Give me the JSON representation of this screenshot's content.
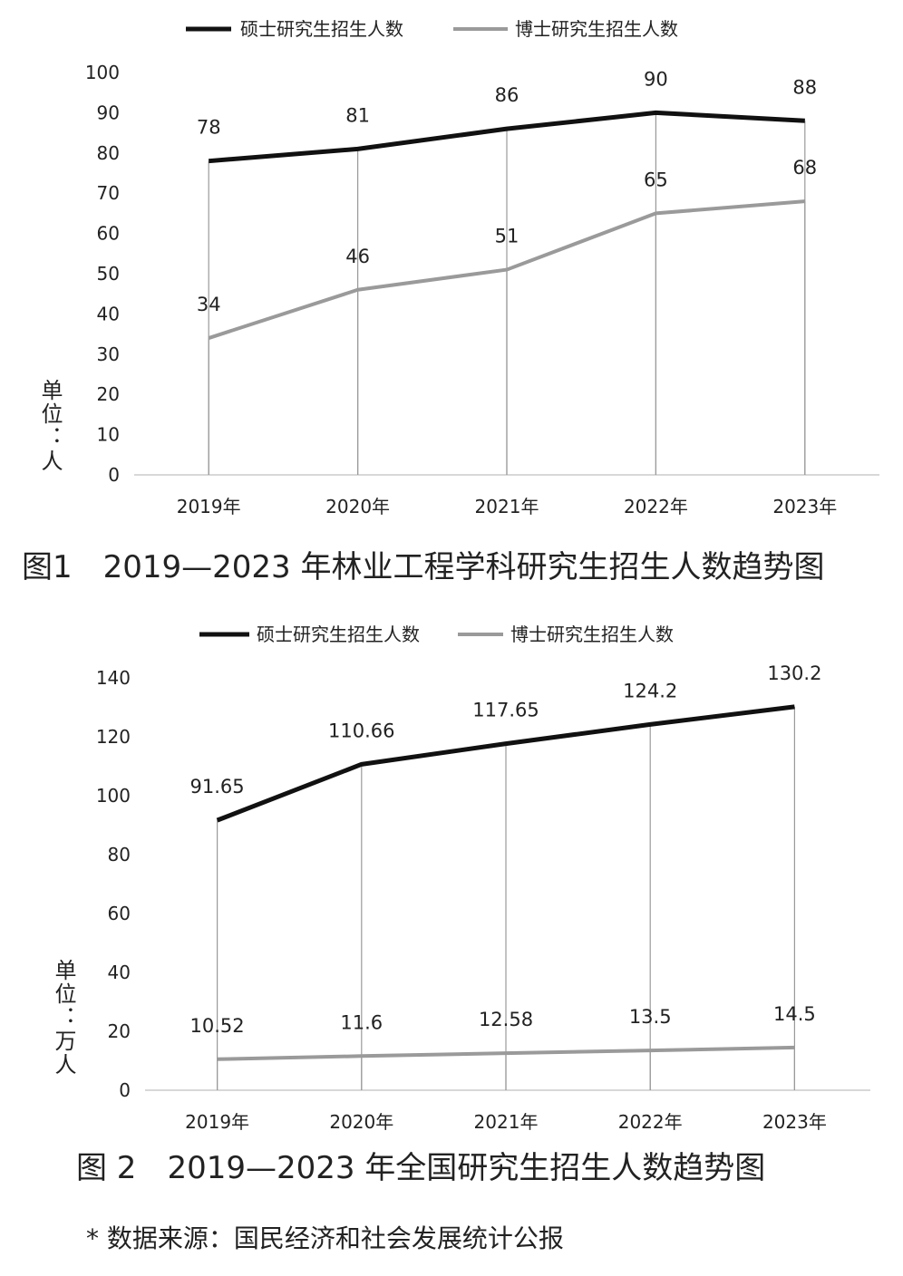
{
  "chart_data": [
    {
      "type": "line",
      "title": "图1　2019—2023 年林业工程学科研究生招生人数趋势图",
      "y_label": "单位：人",
      "categories": [
        "2019年",
        "2020年",
        "2021年",
        "2022年",
        "2023年"
      ],
      "series": [
        {
          "name": "硕士研究生招生人数",
          "color": "#111111",
          "values": [
            78,
            81,
            86,
            90,
            88
          ]
        },
        {
          "name": "博士研究生招生人数",
          "color": "#9a9a9a",
          "values": [
            34,
            46,
            51,
            65,
            68
          ]
        }
      ],
      "ylim": [
        0,
        100
      ],
      "yticks": [
        0,
        10,
        20,
        30,
        40,
        50,
        60,
        70,
        80,
        90,
        100
      ],
      "legend": "top"
    },
    {
      "type": "line",
      "title": "图 2　2019—2023 年全国研究生招生人数趋势图",
      "y_label": "单位：万人",
      "categories": [
        "2019年",
        "2020年",
        "2021年",
        "2022年",
        "2023年"
      ],
      "series": [
        {
          "name": "硕士研究生招生人数",
          "color": "#111111",
          "values": [
            91.65,
            110.66,
            117.65,
            124.2,
            130.2
          ]
        },
        {
          "name": "博士研究生招生人数",
          "color": "#9a9a9a",
          "values": [
            10.52,
            11.6,
            12.58,
            13.5,
            14.5
          ]
        }
      ],
      "ylim": [
        0,
        140
      ],
      "yticks": [
        0,
        20,
        40,
        60,
        80,
        100,
        120,
        140
      ],
      "legend": "top"
    }
  ],
  "note": "* 数据来源：国民经济和社会发展统计公报"
}
